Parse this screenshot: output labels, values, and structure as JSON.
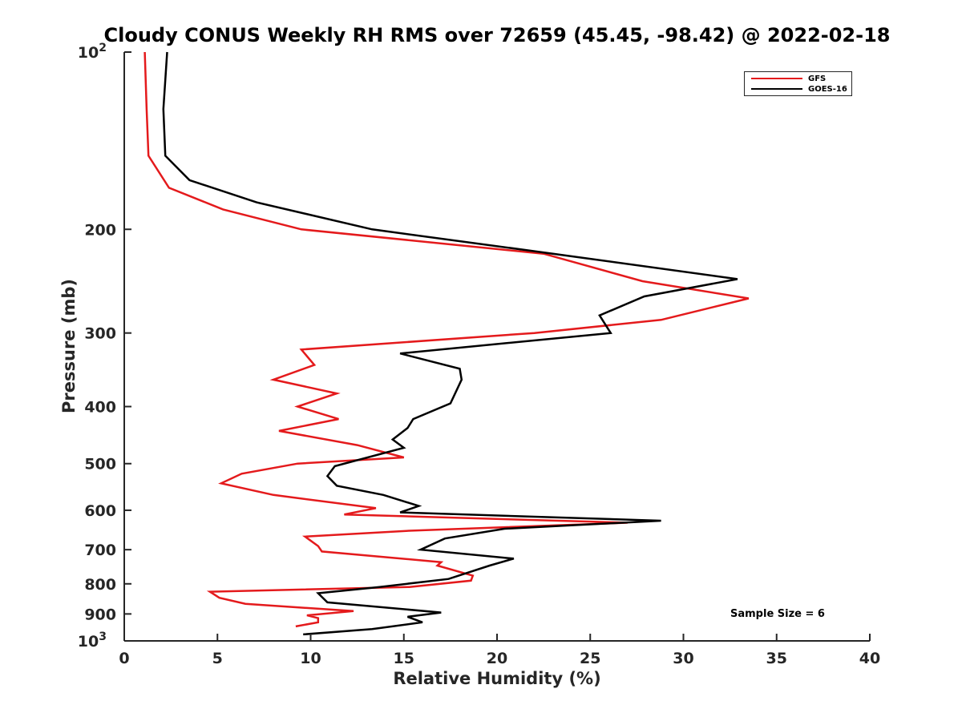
{
  "chart_data": {
    "type": "line",
    "title": "Cloudy CONUS Weekly RH RMS over 72659 (45.45, -98.42) @ 2022-02-18",
    "xlabel": "Relative Humidity (%)",
    "ylabel": "Pressure (mb)",
    "xlim": [
      0,
      40
    ],
    "ylim": [
      100,
      1000
    ],
    "y_scale": "log",
    "y_reversed": true,
    "x_ticks": [
      "0",
      "5",
      "10",
      "15",
      "20",
      "25",
      "30",
      "35",
      "40"
    ],
    "y_ticks": [
      {
        "value": 100,
        "label": "10",
        "sup": "2"
      },
      {
        "value": 200,
        "label": "200"
      },
      {
        "value": 300,
        "label": "300"
      },
      {
        "value": 400,
        "label": "400"
      },
      {
        "value": 500,
        "label": "500"
      },
      {
        "value": 600,
        "label": "600"
      },
      {
        "value": 700,
        "label": "700"
      },
      {
        "value": 800,
        "label": "800"
      },
      {
        "value": 900,
        "label": "900"
      },
      {
        "value": 1000,
        "label": "10",
        "sup": "3"
      }
    ],
    "grid": false,
    "legend_position": "top-right",
    "annotation": "Sample Size = 6",
    "series": [
      {
        "name": "GFS",
        "color": "#e41a1c",
        "points": [
          [
            1.1,
            100
          ],
          [
            1.2,
            125
          ],
          [
            1.3,
            150
          ],
          [
            2.4,
            170
          ],
          [
            5.3,
            185
          ],
          [
            9.5,
            200
          ],
          [
            22.5,
            220
          ],
          [
            27.8,
            245
          ],
          [
            33.5,
            262
          ],
          [
            28.8,
            285
          ],
          [
            22.0,
            300
          ],
          [
            9.5,
            320
          ],
          [
            10.2,
            340
          ],
          [
            8.0,
            360
          ],
          [
            11.4,
            380
          ],
          [
            9.3,
            400
          ],
          [
            11.5,
            420
          ],
          [
            8.3,
            440
          ],
          [
            12.5,
            465
          ],
          [
            15.0,
            488
          ],
          [
            9.3,
            500
          ],
          [
            6.3,
            520
          ],
          [
            5.2,
            540
          ],
          [
            8.0,
            565
          ],
          [
            13.5,
            595
          ],
          [
            11.8,
            610
          ],
          [
            27.0,
            630
          ],
          [
            15.3,
            650
          ],
          [
            9.7,
            665
          ],
          [
            10.4,
            690
          ],
          [
            10.6,
            705
          ],
          [
            17.0,
            735
          ],
          [
            16.8,
            745
          ],
          [
            18.7,
            775
          ],
          [
            18.6,
            790
          ],
          [
            15.3,
            810
          ],
          [
            4.6,
            825
          ],
          [
            5.1,
            845
          ],
          [
            6.5,
            865
          ],
          [
            12.3,
            890
          ],
          [
            9.8,
            905
          ],
          [
            10.4,
            915
          ],
          [
            10.4,
            930
          ],
          [
            9.2,
            945
          ]
        ]
      },
      {
        "name": "GOES-16",
        "color": "#000000",
        "points": [
          [
            2.3,
            100
          ],
          [
            2.1,
            125
          ],
          [
            2.2,
            150
          ],
          [
            3.5,
            165
          ],
          [
            7.1,
            180
          ],
          [
            13.3,
            200
          ],
          [
            23.0,
            220
          ],
          [
            32.9,
            243
          ],
          [
            27.9,
            260
          ],
          [
            25.5,
            280
          ],
          [
            26.1,
            300
          ],
          [
            14.8,
            325
          ],
          [
            18.0,
            345
          ],
          [
            18.1,
            360
          ],
          [
            17.5,
            395
          ],
          [
            15.5,
            420
          ],
          [
            15.2,
            435
          ],
          [
            14.4,
            455
          ],
          [
            15.0,
            470
          ],
          [
            11.3,
            505
          ],
          [
            10.9,
            525
          ],
          [
            11.4,
            545
          ],
          [
            13.9,
            565
          ],
          [
            15.8,
            590
          ],
          [
            14.8,
            605
          ],
          [
            28.8,
            625
          ],
          [
            20.4,
            645
          ],
          [
            17.2,
            670
          ],
          [
            15.9,
            700
          ],
          [
            20.9,
            725
          ],
          [
            19.6,
            745
          ],
          [
            17.4,
            785
          ],
          [
            13.7,
            810
          ],
          [
            10.4,
            830
          ],
          [
            10.9,
            860
          ],
          [
            17.0,
            895
          ],
          [
            15.2,
            910
          ],
          [
            16.0,
            930
          ],
          [
            13.3,
            955
          ],
          [
            9.6,
            975
          ]
        ]
      }
    ]
  }
}
